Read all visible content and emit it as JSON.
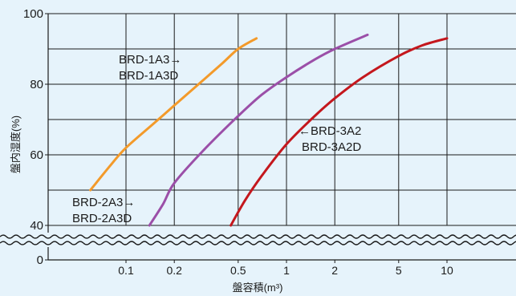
{
  "chart_data": {
    "type": "line",
    "xlabel": "盤容積(m³)",
    "ylabel": "盤内湿度(%)",
    "x_scale": "log",
    "y_ticks": [
      0,
      40,
      60,
      80,
      100
    ],
    "x_ticks": [
      "0.1",
      "0.2",
      "0.5",
      "1",
      "2",
      "5",
      "10"
    ],
    "grid": true,
    "axis_break": "wavy break between 0 and 40 on y-axis",
    "colors": {
      "background": "#e6f3fb",
      "orange": "#f39a2a",
      "purple": "#9b4fa8",
      "red": "#c4171d",
      "grid": "#1b1b1b"
    },
    "series": [
      {
        "labels": [
          "BRD-1A3→",
          "BRD-1A3D"
        ],
        "color": "#f39a2a",
        "points": [
          [
            0.06,
            50
          ],
          [
            0.08,
            57
          ],
          [
            0.1,
            62
          ],
          [
            0.15,
            69
          ],
          [
            0.2,
            74
          ],
          [
            0.3,
            81
          ],
          [
            0.4,
            86
          ],
          [
            0.5,
            90
          ],
          [
            0.65,
            93
          ]
        ]
      },
      {
        "labels": [
          "BRD-2A3→",
          "BRD-2A3D"
        ],
        "color": "#9b4fa8",
        "points": [
          [
            0.14,
            40
          ],
          [
            0.17,
            46
          ],
          [
            0.2,
            52
          ],
          [
            0.3,
            61
          ],
          [
            0.5,
            71
          ],
          [
            0.7,
            77
          ],
          [
            1,
            82
          ],
          [
            1.5,
            87
          ],
          [
            2,
            90
          ],
          [
            3.2,
            94
          ]
        ]
      },
      {
        "labels": [
          "←BRD-3A2",
          "BRD-3A2D"
        ],
        "color": "#c4171d",
        "points": [
          [
            0.45,
            40
          ],
          [
            0.55,
            47
          ],
          [
            0.7,
            54
          ],
          [
            1,
            63
          ],
          [
            1.5,
            71
          ],
          [
            2,
            76
          ],
          [
            3,
            82
          ],
          [
            5,
            88
          ],
          [
            7,
            91
          ],
          [
            10,
            93
          ]
        ]
      }
    ]
  }
}
